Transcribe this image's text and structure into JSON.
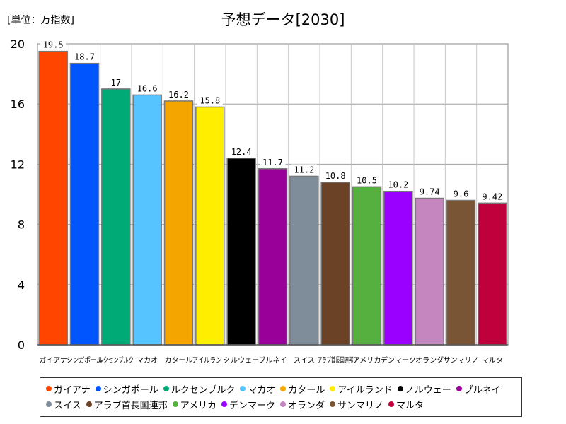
{
  "header": {
    "unit_label": "[単位：万指数]",
    "title": "予想データ[2030]"
  },
  "chart_data": {
    "type": "bar",
    "title": "予想データ[2030]",
    "unit": "[単位：万指数]",
    "xlabel": "",
    "ylabel": "",
    "ylim": [
      0,
      20
    ],
    "yticks": [
      0,
      4,
      8,
      12,
      16,
      20
    ],
    "grid": true,
    "legend_position": "bottom",
    "tick_labels": [
      "ガイアナ",
      "シンガポール",
      "ルクセンブルク",
      "マカオ",
      "カタール",
      "アイルランド",
      "ノルウェー",
      "ブルネイ",
      "スイス",
      "アラブ首長国連邦",
      "アメリカ",
      "デンマーク",
      "オランダ",
      "サンマリノ",
      "マルタ"
    ],
    "categories": [
      "ガイアナ",
      "シンガポール",
      "ルクセンブルク",
      "マカオ",
      "カタール",
      "アイルランド",
      "ノルウェー",
      "ブルネイ",
      "スイス",
      "アラブ首長国連邦",
      "アメリカ",
      "デンマーク",
      "オランダ",
      "サンマリノ",
      "マルタ"
    ],
    "values": [
      19.5,
      18.7,
      17,
      16.6,
      16.2,
      15.8,
      12.4,
      11.7,
      11.2,
      10.8,
      10.5,
      10.2,
      9.74,
      9.6,
      9.42
    ],
    "value_labels": [
      "19.5",
      "18.7",
      "17",
      "16.6",
      "16.2",
      "15.8",
      "12.4",
      "11.7",
      "11.2",
      "10.8",
      "10.5",
      "10.2",
      "9.74",
      "9.6",
      "9.42"
    ],
    "colors": [
      "#ff4500",
      "#0055ff",
      "#00aa77",
      "#55c4ff",
      "#f5a500",
      "#ffee00",
      "#000000",
      "#990099",
      "#7f8c99",
      "#6b4226",
      "#55b040",
      "#9900ff",
      "#c586c0",
      "#7a5535",
      "#c0003c"
    ]
  }
}
